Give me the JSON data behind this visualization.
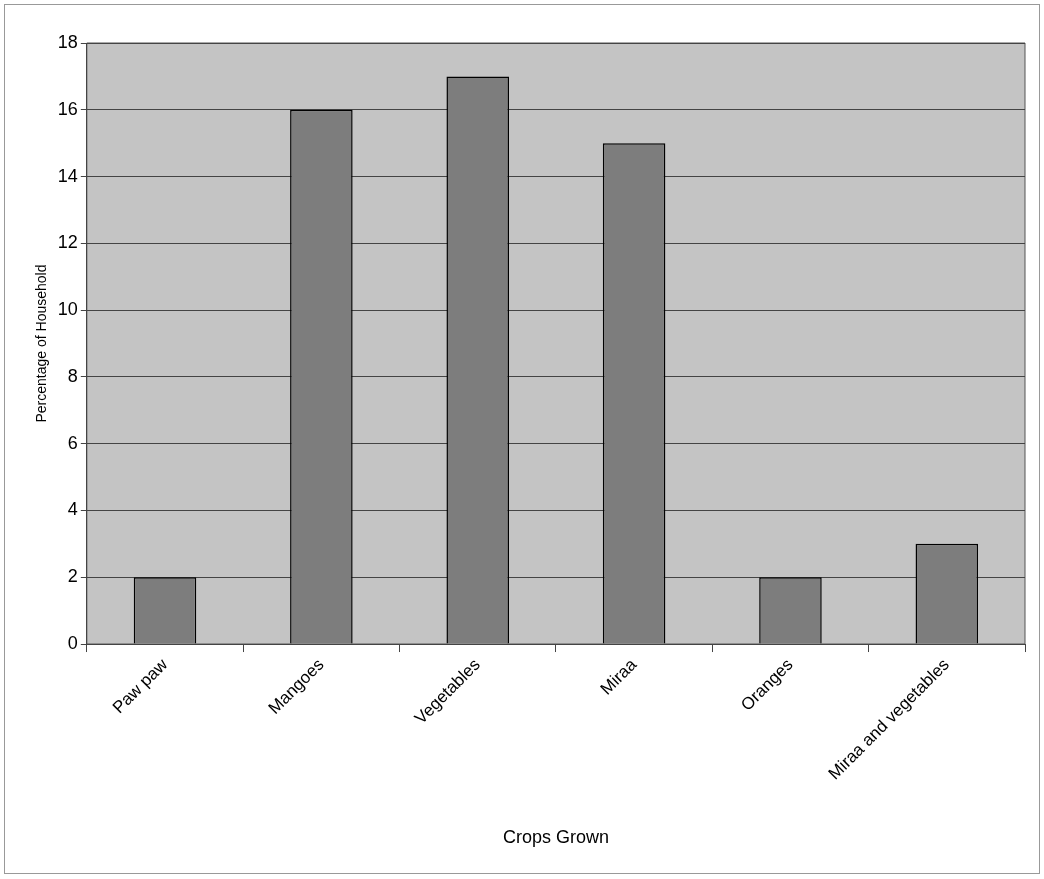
{
  "chart_data": {
    "type": "bar",
    "xlabel": "Crops Grown",
    "ylabel": "Percentage of Household",
    "categories": [
      "Paw paw",
      "Mangoes",
      "Vegetables",
      "Miraa",
      "Oranges",
      "Miraa and vegetables"
    ],
    "values": [
      2,
      16,
      17,
      15,
      2,
      3
    ],
    "color": "#7d7d7d",
    "ylim": [
      0,
      18
    ],
    "yticks": [
      0,
      2,
      4,
      6,
      8,
      10,
      12,
      14,
      16,
      18
    ],
    "grid": "y",
    "legend": false
  }
}
